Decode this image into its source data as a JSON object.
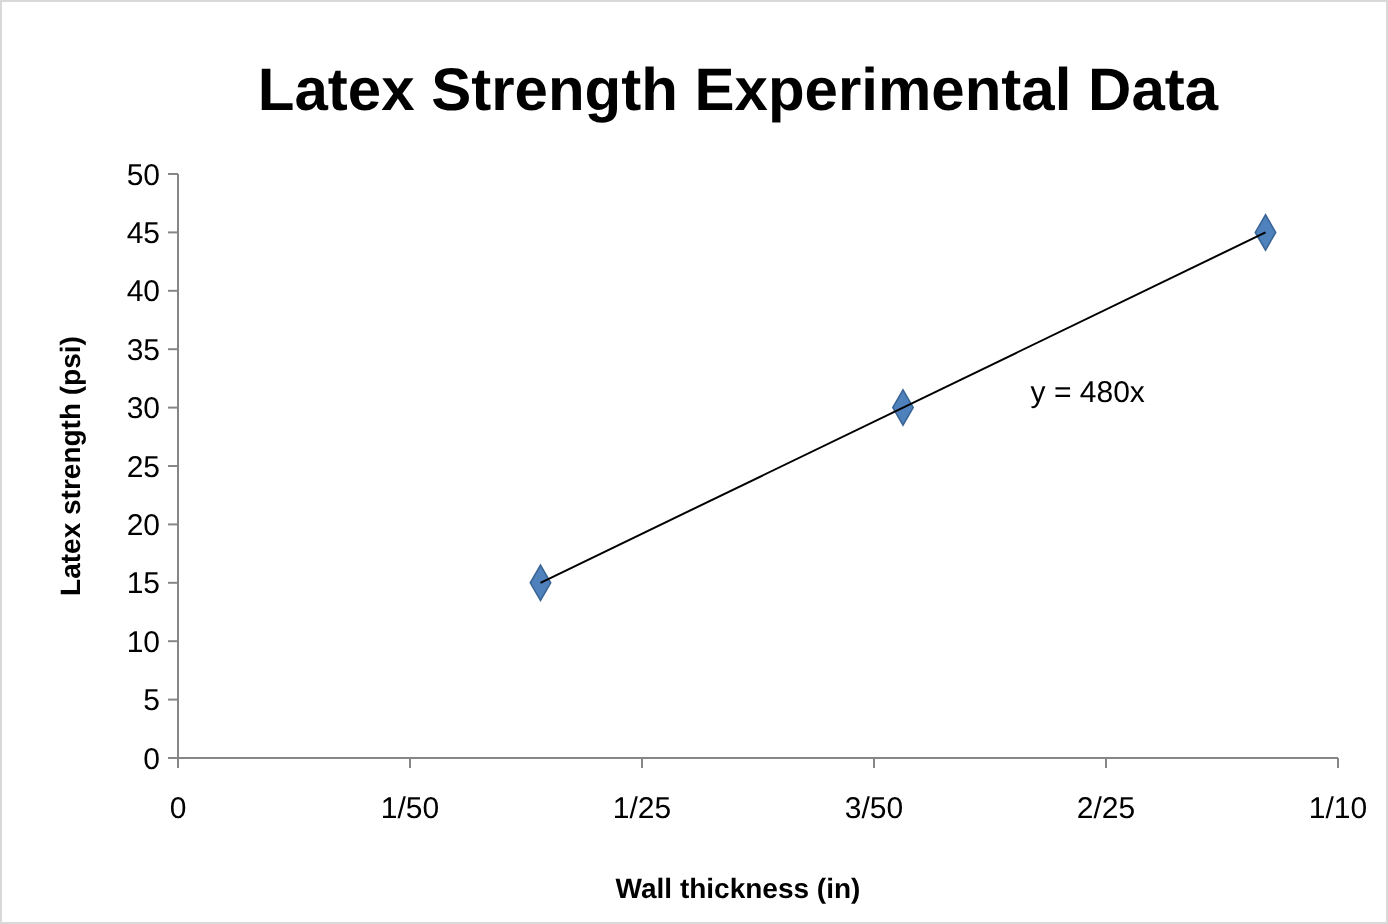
{
  "chart_data": {
    "type": "scatter",
    "title": "Latex Strength Experimental Data",
    "xlabel": "Wall thickness (in)",
    "ylabel": "Latex strength (psi)",
    "xlim": [
      0,
      0.1
    ],
    "xticks": [
      0,
      {
        "value": 0.02,
        "label": "1/50"
      },
      {
        "value": 0.04,
        "label": "1/25"
      },
      {
        "value": 0.06,
        "label": "3/50"
      },
      {
        "value": 0.08,
        "label": "2/25"
      },
      {
        "value": 0.1,
        "label": "1/10"
      }
    ],
    "ylim": [
      0,
      50
    ],
    "yticks": [
      0,
      5,
      10,
      15,
      20,
      25,
      30,
      35,
      40,
      45,
      50
    ],
    "grid": false,
    "series": [
      {
        "marker": "diamond",
        "color": "#4f81bd",
        "x": [
          0.03125,
          0.0625,
          0.09375
        ],
        "values": [
          15,
          30,
          45
        ]
      },
      {
        "type": "line",
        "marker": "none",
        "color": "#000000",
        "x": [
          0.03125,
          0.09375
        ],
        "values": [
          15,
          45
        ]
      }
    ],
    "annotations": [
      "y = 480x"
    ]
  }
}
